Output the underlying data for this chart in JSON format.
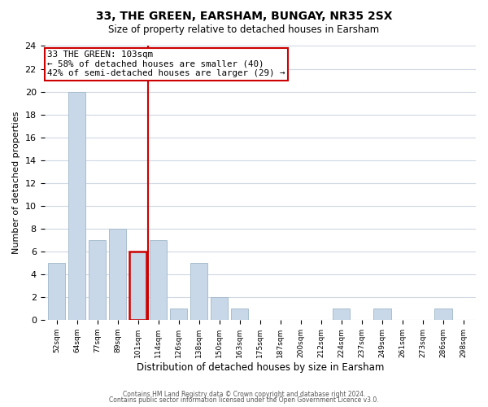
{
  "title": "33, THE GREEN, EARSHAM, BUNGAY, NR35 2SX",
  "subtitle": "Size of property relative to detached houses in Earsham",
  "xlabel": "Distribution of detached houses by size in Earsham",
  "ylabel": "Number of detached properties",
  "bin_labels": [
    "52sqm",
    "64sqm",
    "77sqm",
    "89sqm",
    "101sqm",
    "114sqm",
    "126sqm",
    "138sqm",
    "150sqm",
    "163sqm",
    "175sqm",
    "187sqm",
    "200sqm",
    "212sqm",
    "224sqm",
    "237sqm",
    "249sqm",
    "261sqm",
    "273sqm",
    "286sqm",
    "298sqm"
  ],
  "bar_values": [
    5,
    20,
    7,
    8,
    6,
    7,
    1,
    5,
    2,
    1,
    0,
    0,
    0,
    0,
    1,
    0,
    1,
    0,
    0,
    1,
    0
  ],
  "bar_color": "#c8d8e8",
  "bar_edge_color": "#a8bece",
  "highlight_index": 4,
  "highlight_edge_color": "#cc0000",
  "vline_color": "#cc0000",
  "annotation_title": "33 THE GREEN: 103sqm",
  "annotation_line1": "← 58% of detached houses are smaller (40)",
  "annotation_line2": "42% of semi-detached houses are larger (29) →",
  "annotation_box_edge": "#cc0000",
  "ylim": [
    0,
    24
  ],
  "yticks": [
    0,
    2,
    4,
    6,
    8,
    10,
    12,
    14,
    16,
    18,
    20,
    22,
    24
  ],
  "footer_line1": "Contains HM Land Registry data © Crown copyright and database right 2024.",
  "footer_line2": "Contains public sector information licensed under the Open Government Licence v3.0.",
  "background_color": "#ffffff",
  "grid_color": "#d0d8e4"
}
